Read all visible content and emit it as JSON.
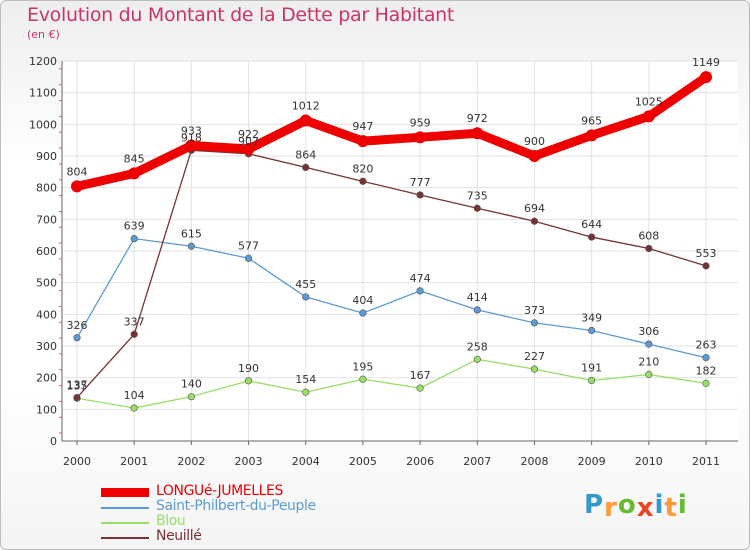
{
  "header": {
    "title": "Evolution du Montant de la Dette par Habitant",
    "subtitle": "(en €)"
  },
  "chart_data": {
    "type": "line",
    "title": "Evolution du Montant de la Dette par Habitant",
    "subtitle": "(en €)",
    "xlabel": "",
    "ylabel": "",
    "x": [
      "2000",
      "2001",
      "2002",
      "2003",
      "2004",
      "2005",
      "2006",
      "2007",
      "2008",
      "2009",
      "2010",
      "2011"
    ],
    "ylim": [
      0,
      1200
    ],
    "yticks": [
      0,
      100,
      200,
      300,
      400,
      500,
      600,
      700,
      800,
      900,
      1000,
      1100,
      1200
    ],
    "grid": true,
    "legend_position": "bottom-left",
    "series": [
      {
        "name": "LONGUé-JUMELLES",
        "color": "#ee0000",
        "values": [
          804,
          845,
          933,
          922,
          1012,
          947,
          959,
          972,
          900,
          965,
          1025,
          1149
        ]
      },
      {
        "name": "Saint-Philbert-du-Peuple",
        "color": "#5b9bd5",
        "values": [
          326,
          639,
          615,
          577,
          455,
          404,
          474,
          414,
          373,
          349,
          306,
          263
        ]
      },
      {
        "name": "Blou",
        "color": "#99dd66",
        "values": [
          135,
          104,
          140,
          190,
          154,
          195,
          167,
          258,
          227,
          191,
          210,
          182
        ]
      },
      {
        "name": "Neuillé",
        "color": "#773333",
        "values": [
          137,
          337,
          918,
          907,
          864,
          820,
          777,
          735,
          694,
          644,
          608,
          553
        ]
      }
    ]
  },
  "logo": {
    "letters": [
      "P",
      "r",
      "o",
      "x",
      "i",
      "t",
      "i"
    ],
    "colors": [
      "#3399cc",
      "#ff9933",
      "#66bb33",
      "#ee4422",
      "#3399cc",
      "#ff9933",
      "#66bb33"
    ]
  }
}
